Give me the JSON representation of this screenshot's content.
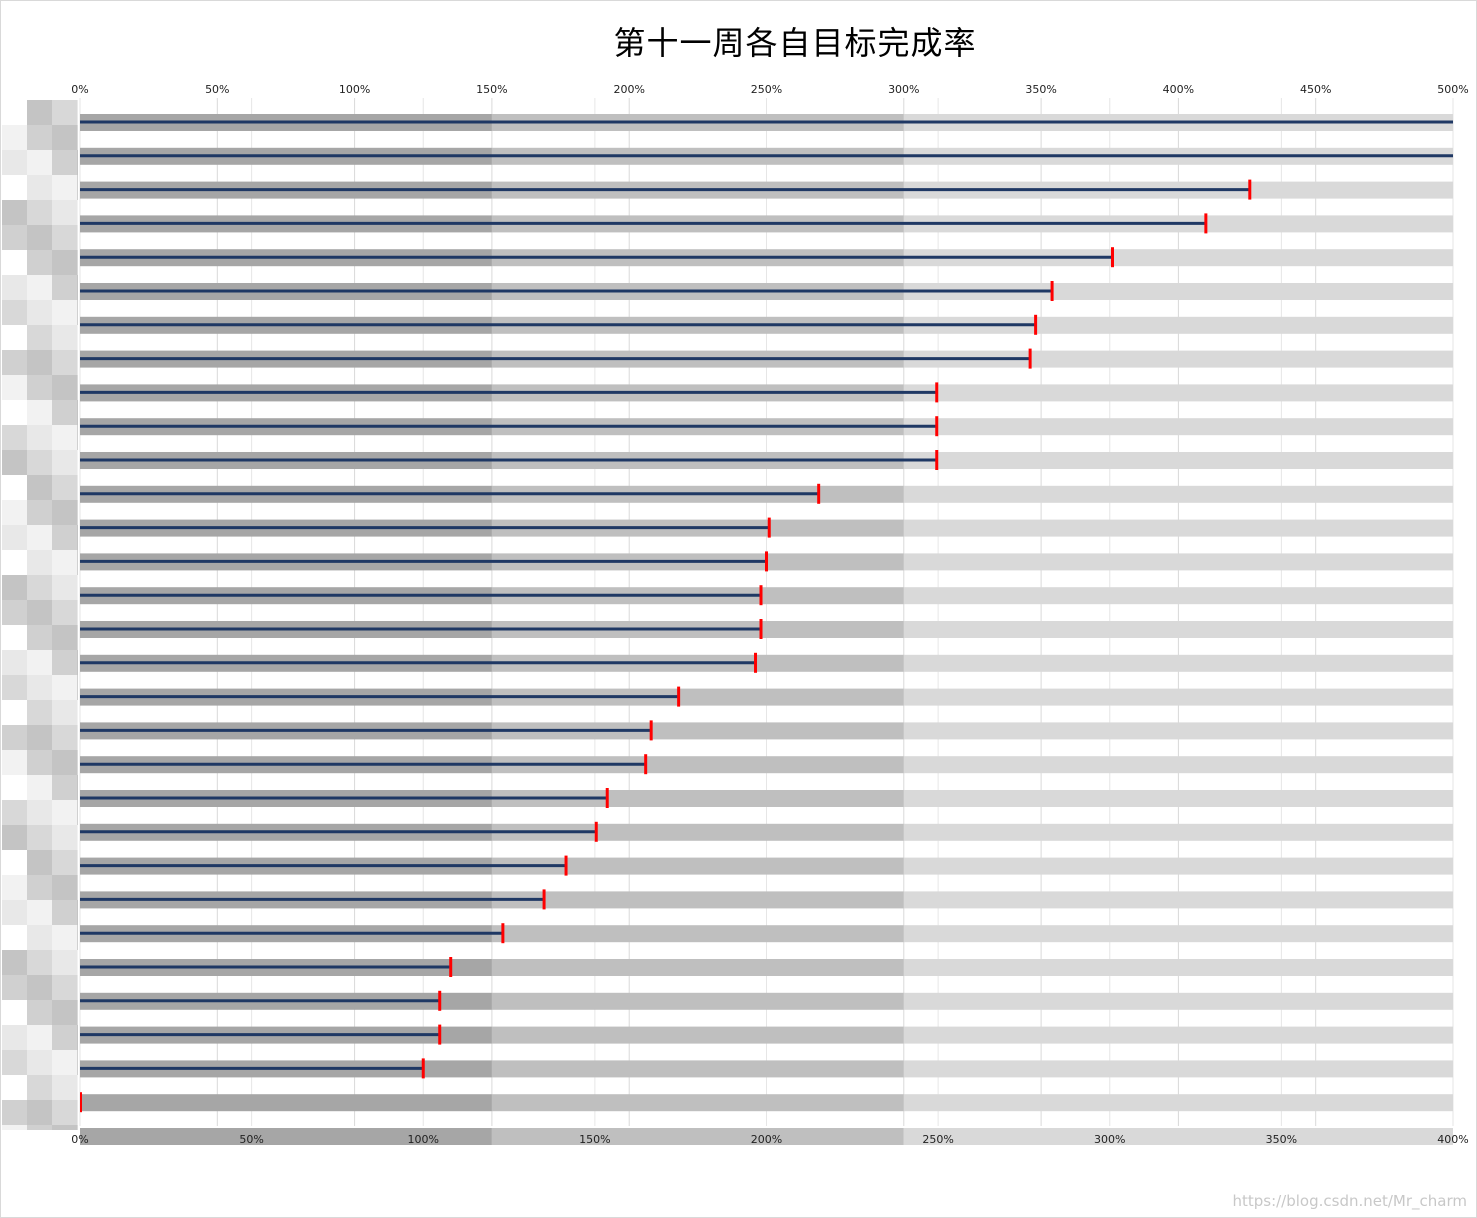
{
  "chart_data": {
    "type": "bar",
    "title": "第十一周各自目标完成率",
    "top_axis": {
      "min": 0,
      "max": 500,
      "ticks": [
        0,
        50,
        100,
        150,
        200,
        250,
        300,
        350,
        400,
        450,
        500
      ],
      "tick_labels": [
        "0%",
        "50%",
        "100%",
        "150%",
        "200%",
        "250%",
        "300%",
        "350%",
        "400%",
        "450%",
        "500%"
      ]
    },
    "bottom_axis": {
      "min": 0,
      "max": 400,
      "ticks": [
        0,
        50,
        100,
        150,
        200,
        250,
        300,
        350,
        400
      ],
      "tick_labels": [
        "0%",
        "50%",
        "100%",
        "150%",
        "200%",
        "250%",
        "300%",
        "350%",
        "400%"
      ]
    },
    "background_bands": [
      {
        "from": 0,
        "to": 150,
        "color": "#a6a6a6"
      },
      {
        "from": 150,
        "to": 300,
        "color": "#bfbfbf"
      },
      {
        "from": 300,
        "to": 500,
        "color": "#d9d9d9"
      }
    ],
    "completion_rate_percent": [
      500,
      500,
      426,
      410,
      376,
      354,
      348,
      346,
      312,
      312,
      312,
      269,
      251,
      250,
      248,
      248,
      246,
      218,
      208,
      206,
      192,
      188,
      177,
      169,
      154,
      135,
      131,
      131,
      125,
      0,
      0
    ],
    "target_marker_color": "#ff0000",
    "bar_line_color": "#1f3864",
    "grid": true,
    "legend": "none"
  },
  "watermark": "https://blog.csdn.net/Mr_charm"
}
